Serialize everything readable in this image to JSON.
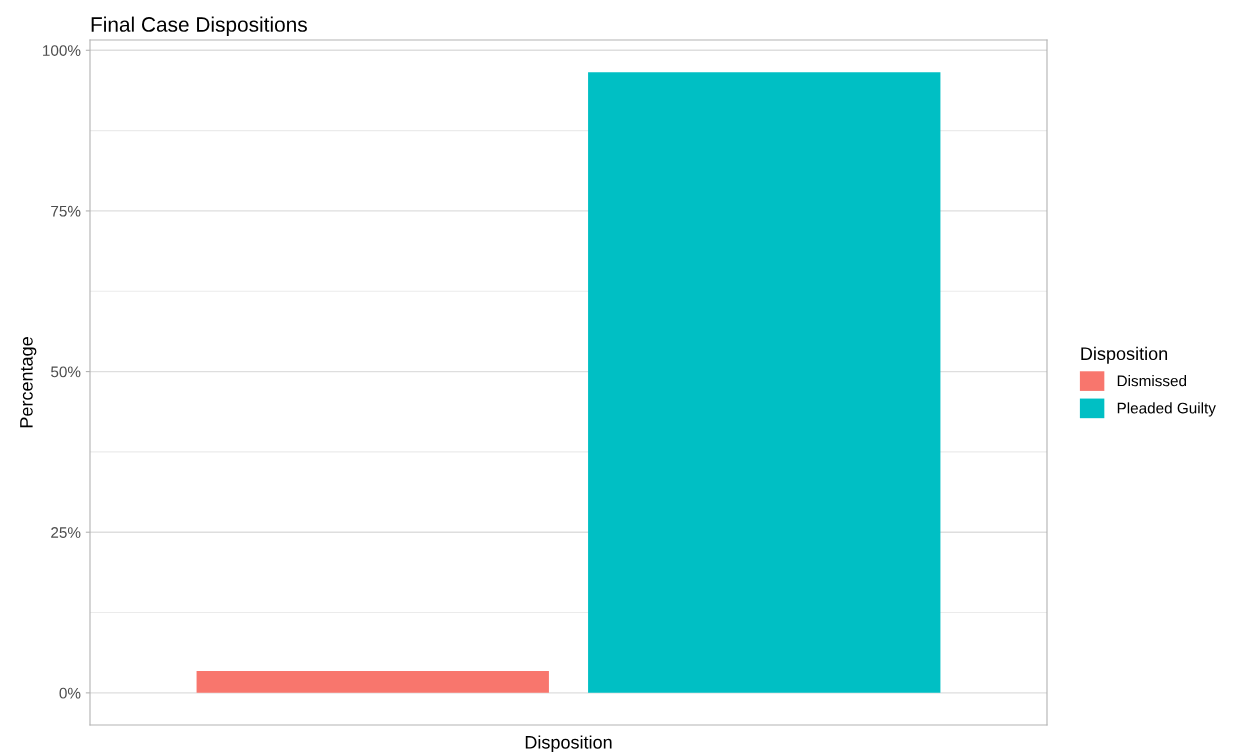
{
  "chart_data": {
    "type": "bar",
    "title": "Final Case Dispositions",
    "xlabel": "Disposition",
    "ylabel": "Percentage",
    "legend_title": "Disposition",
    "categories": [
      null
    ],
    "series": [
      {
        "name": "Dismissed",
        "color": "#f8766d",
        "values": [
          3.4
        ]
      },
      {
        "name": "Pleaded Guilty",
        "color": "#00bfc4",
        "values": [
          96.6
        ]
      }
    ],
    "ylim": [
      -5,
      101.6
    ],
    "yticks": [
      {
        "value": 0,
        "label": "0%"
      },
      {
        "value": 25,
        "label": "25%"
      },
      {
        "value": 50,
        "label": "50%"
      },
      {
        "value": 75,
        "label": "75%"
      },
      {
        "value": 100,
        "label": "100%"
      }
    ],
    "grid": "y",
    "legend": "right"
  }
}
